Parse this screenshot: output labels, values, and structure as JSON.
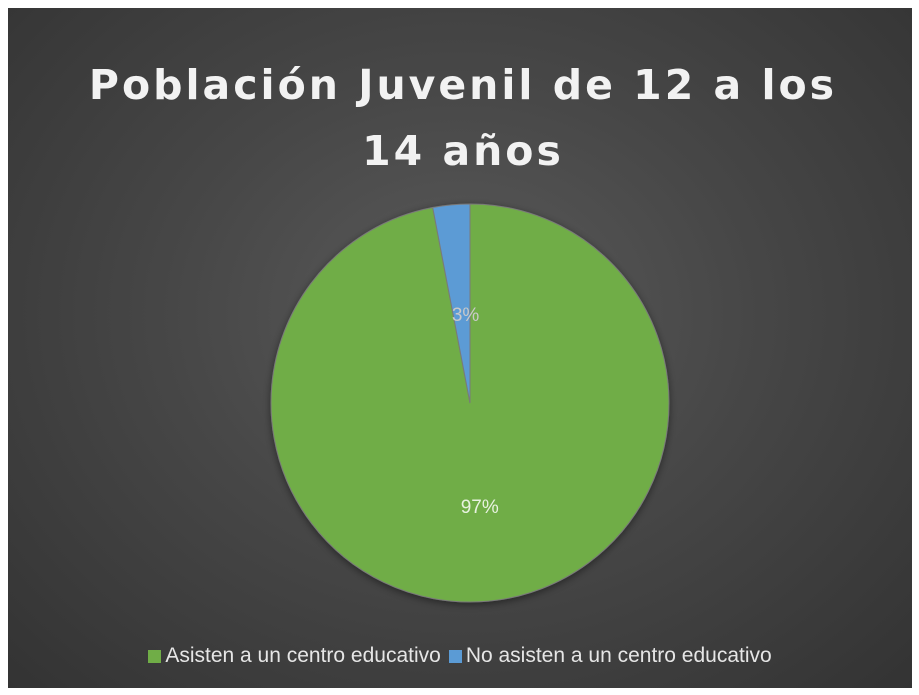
{
  "chart_data": {
    "type": "pie",
    "title": "Población Juvenil de 12 a los 14 años",
    "slices": [
      {
        "label": "Asisten a un centro educativo",
        "value": 97,
        "value_label": "97%",
        "color": "#70ad47"
      },
      {
        "label": "No asisten a un centro educativo",
        "value": 3,
        "value_label": "3%",
        "color": "#5b9bd5"
      }
    ],
    "legend_position": "bottom"
  }
}
